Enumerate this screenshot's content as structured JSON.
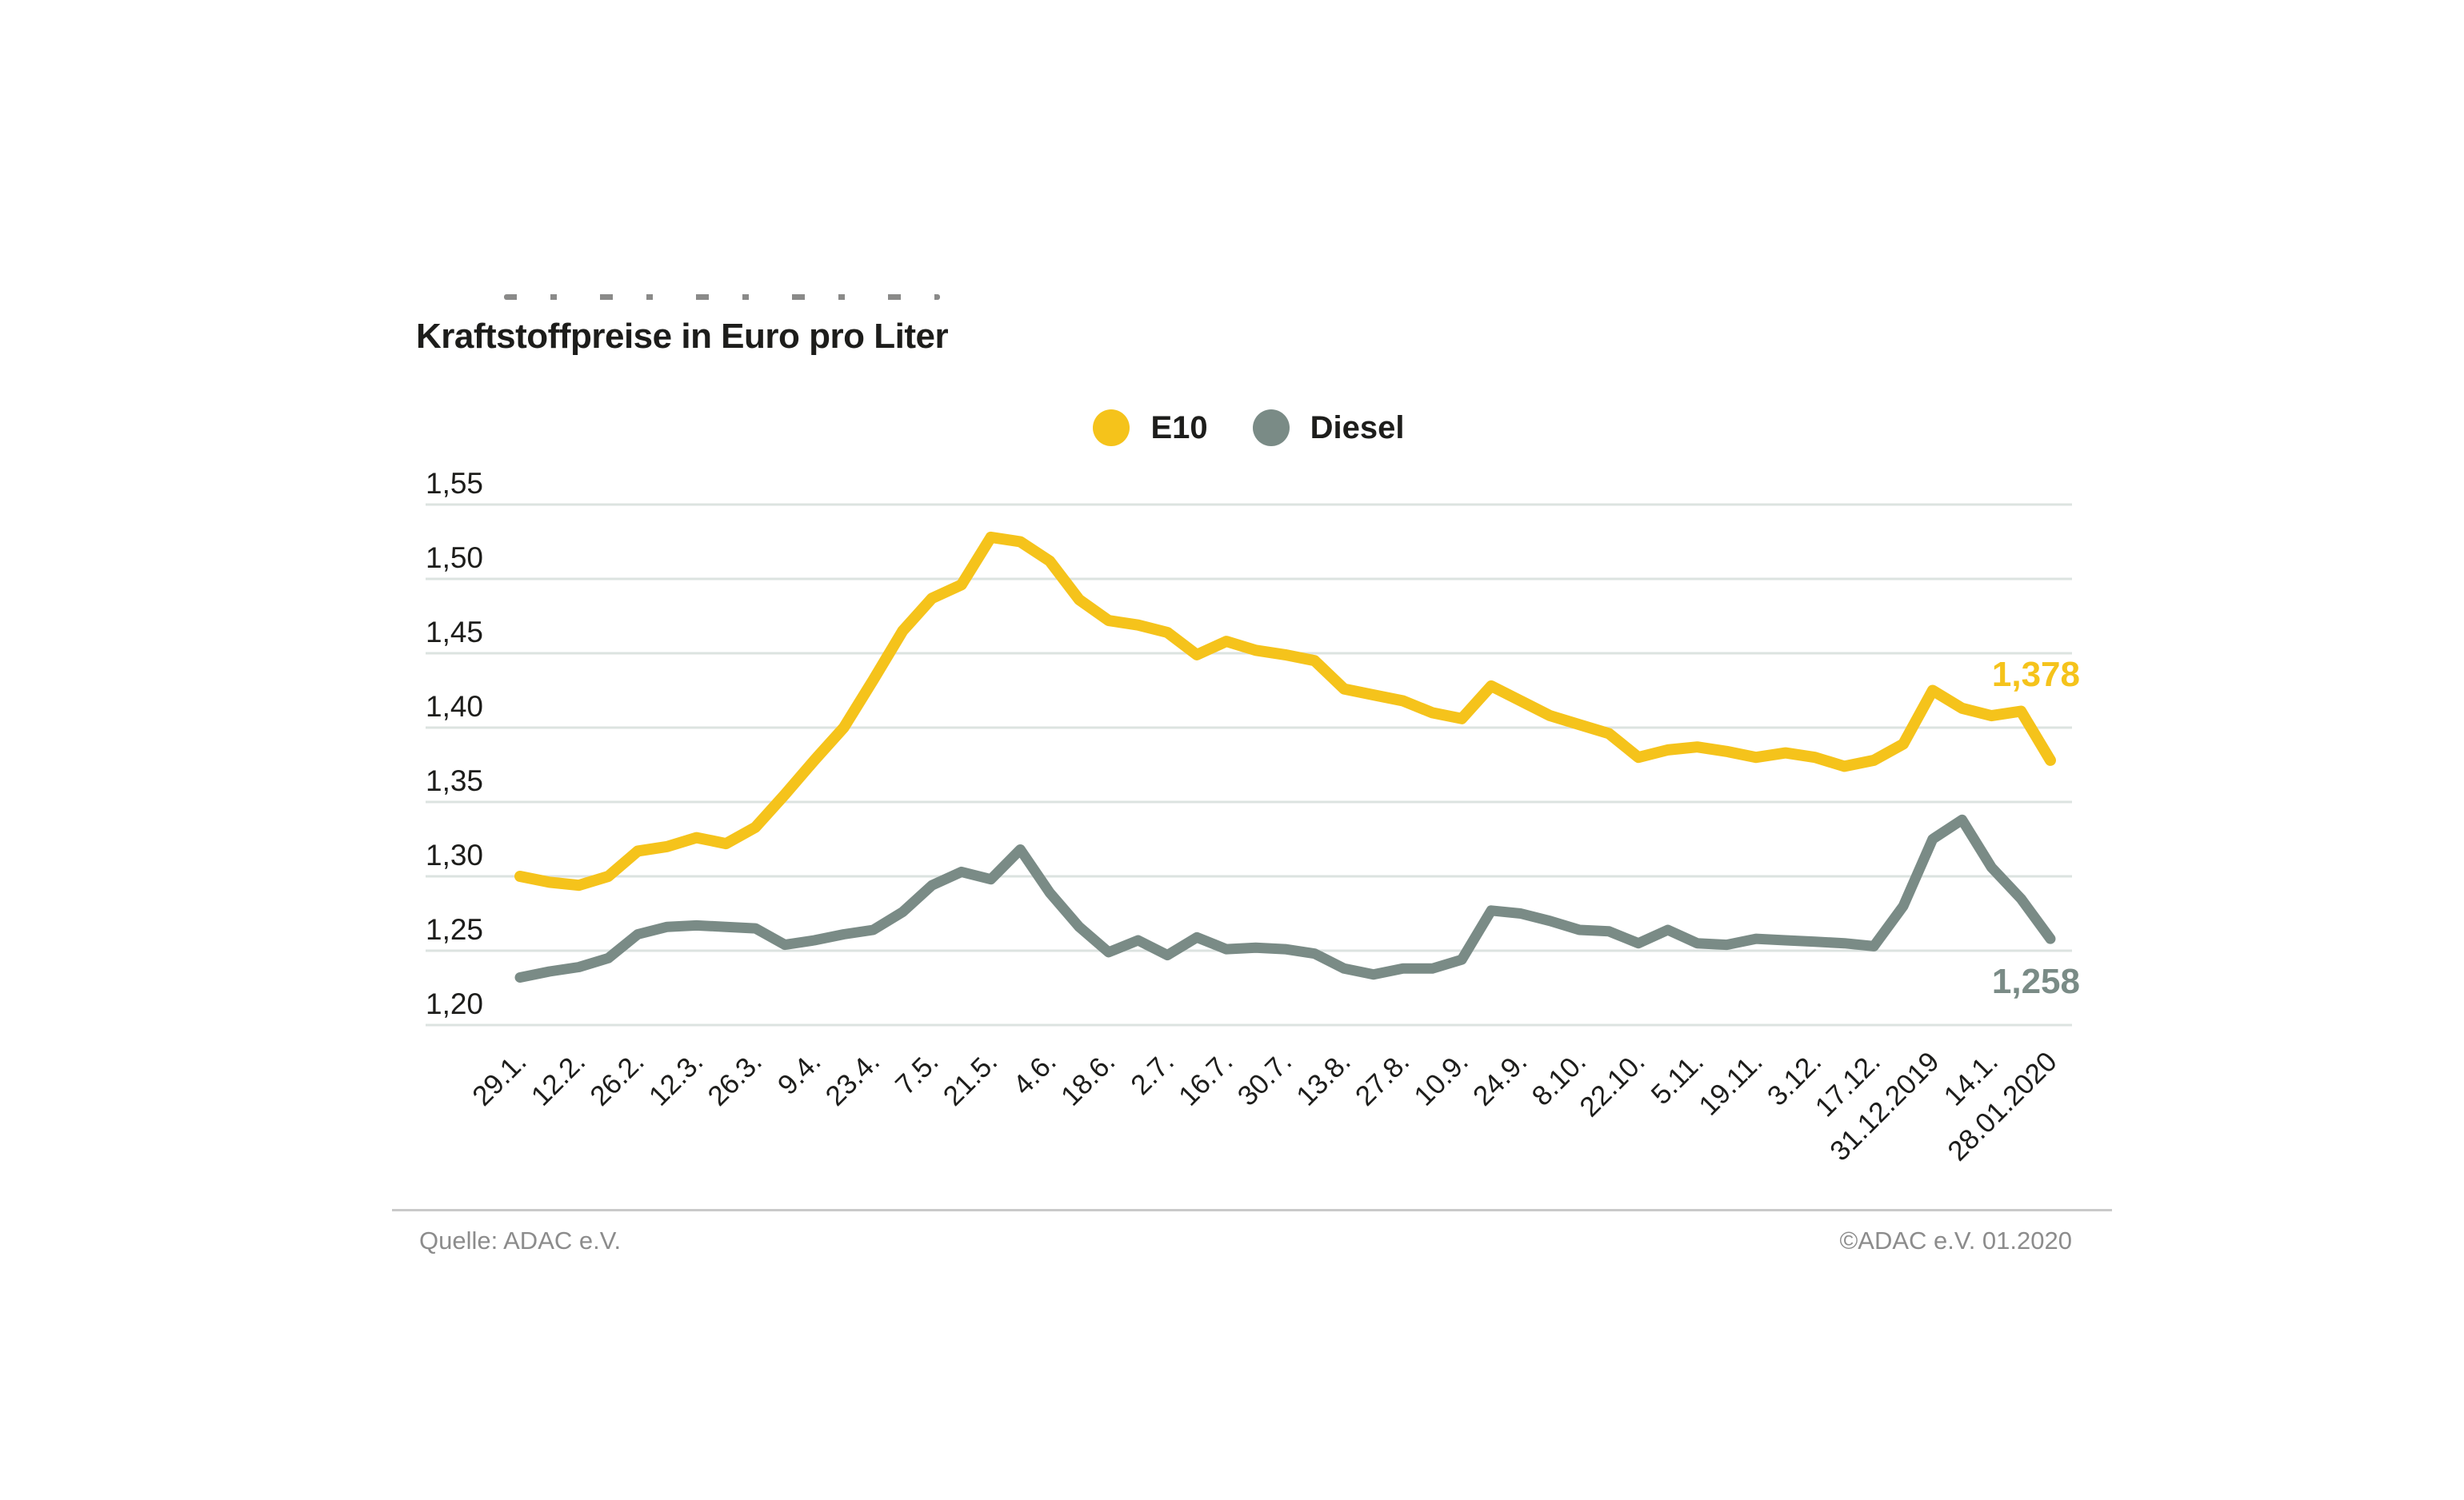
{
  "title": "Kraftstoffpreise in Euro pro Liter",
  "legend": {
    "items": [
      {
        "label": "E10",
        "color": "#F5C31B"
      },
      {
        "label": "Diesel",
        "color": "#7A8B86"
      }
    ]
  },
  "footer": {
    "source": "Quelle: ADAC e.V.",
    "copyright": "©ADAC e.V.  01.2020"
  },
  "colors": {
    "e10": "#F5C31B",
    "diesel": "#7A8B86",
    "gridline": "#DCE3E0",
    "text": "#1D1D1B",
    "footer_text": "#8C8C8C"
  },
  "chart_data": {
    "type": "line",
    "title": "Kraftstoffpreise in Euro pro Liter",
    "ylabel": "Euro pro Liter",
    "xlabel": "",
    "ylim": [
      1.2,
      1.55
    ],
    "grid": "horizontal",
    "legend_position": "top-center",
    "y_ticks": [
      1.55,
      1.5,
      1.45,
      1.4,
      1.35,
      1.3,
      1.25,
      1.2
    ],
    "y_tick_labels": [
      "1,55",
      "1,50",
      "1,45",
      "1,40",
      "1,35",
      "1,30",
      "1,25",
      "1,20"
    ],
    "weeks_total": 53,
    "x_ticks": [
      {
        "label": "29.1.",
        "week": 0
      },
      {
        "label": "12.2.",
        "week": 2
      },
      {
        "label": "26.2.",
        "week": 4
      },
      {
        "label": "12.3.",
        "week": 6
      },
      {
        "label": "26.3.",
        "week": 8
      },
      {
        "label": "9.4.",
        "week": 10
      },
      {
        "label": "23.4.",
        "week": 12
      },
      {
        "label": "7.5.",
        "week": 14
      },
      {
        "label": "21.5.",
        "week": 16
      },
      {
        "label": "4.6.",
        "week": 18
      },
      {
        "label": "18.6.",
        "week": 20
      },
      {
        "label": "2.7.",
        "week": 22
      },
      {
        "label": "16.7.",
        "week": 24
      },
      {
        "label": "30.7.",
        "week": 26
      },
      {
        "label": "13.8.",
        "week": 28
      },
      {
        "label": "27.8.",
        "week": 30
      },
      {
        "label": "10.9.",
        "week": 32
      },
      {
        "label": "24.9.",
        "week": 34
      },
      {
        "label": "8.10.",
        "week": 36
      },
      {
        "label": "22.10.",
        "week": 38
      },
      {
        "label": "5.11.",
        "week": 40
      },
      {
        "label": "19.11.",
        "week": 42
      },
      {
        "label": "3.12.",
        "week": 44
      },
      {
        "label": "17.12.",
        "week": 46
      },
      {
        "label": "31.12.2019",
        "week": 48
      },
      {
        "label": "14.1.",
        "week": 50
      },
      {
        "label": "28.01.2020",
        "week": 52
      }
    ],
    "series": [
      {
        "name": "E10",
        "color": "#F5C31B",
        "end_label": "1,378",
        "end_value": 1.378,
        "values": [
          1.3,
          1.296,
          1.294,
          1.3,
          1.317,
          1.32,
          1.326,
          1.322,
          1.333,
          1.355,
          1.378,
          1.4,
          1.432,
          1.465,
          1.487,
          1.496,
          1.528,
          1.525,
          1.512,
          1.486,
          1.472,
          1.469,
          1.464,
          1.449,
          1.458,
          1.452,
          1.449,
          1.445,
          1.426,
          1.422,
          1.418,
          1.41,
          1.406,
          1.428,
          1.418,
          1.408,
          1.402,
          1.396,
          1.38,
          1.385,
          1.387,
          1.384,
          1.38,
          1.383,
          1.38,
          1.374,
          1.378,
          1.389,
          1.425,
          1.413,
          1.408,
          1.411,
          1.378
        ]
      },
      {
        "name": "Diesel",
        "color": "#7A8B86",
        "end_label": "1,258",
        "end_value": 1.258,
        "values": [
          1.232,
          1.236,
          1.239,
          1.245,
          1.261,
          1.266,
          1.267,
          1.266,
          1.265,
          1.254,
          1.257,
          1.261,
          1.264,
          1.276,
          1.294,
          1.303,
          1.298,
          1.318,
          1.289,
          1.266,
          1.249,
          1.257,
          1.247,
          1.259,
          1.251,
          1.252,
          1.251,
          1.248,
          1.238,
          1.234,
          1.238,
          1.238,
          1.244,
          1.277,
          1.275,
          1.27,
          1.264,
          1.263,
          1.255,
          1.264,
          1.255,
          1.254,
          1.258,
          1.257,
          1.256,
          1.255,
          1.253,
          1.28,
          1.325,
          1.338,
          1.306,
          1.285,
          1.258
        ]
      }
    ]
  }
}
